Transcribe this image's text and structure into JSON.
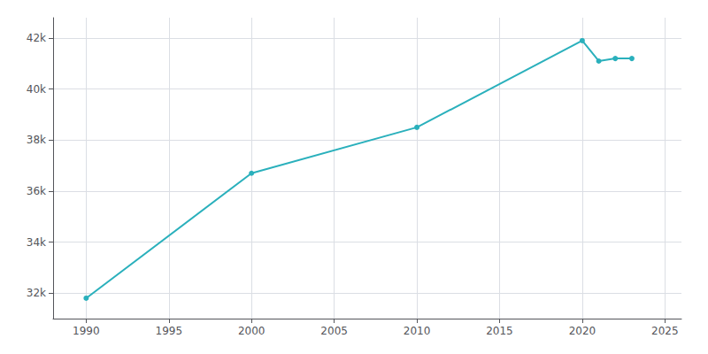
{
  "chart_data": {
    "type": "line",
    "x": [
      1990,
      2000,
      2010,
      2020,
      2021,
      2022,
      2023
    ],
    "values": [
      31800,
      36700,
      38500,
      41900,
      41100,
      41200,
      41200
    ],
    "color": "#2ab0bc",
    "marker": "circle",
    "xlim": [
      1988,
      2026
    ],
    "ylim": [
      31000,
      42800
    ],
    "xticks": [
      1990,
      1995,
      2000,
      2005,
      2010,
      2015,
      2020,
      2025
    ],
    "yticks": [
      {
        "value": 32000,
        "label": "32k"
      },
      {
        "value": 34000,
        "label": "34k"
      },
      {
        "value": 36000,
        "label": "36k"
      },
      {
        "value": 38000,
        "label": "38k"
      },
      {
        "value": 40000,
        "label": "40k"
      },
      {
        "value": 42000,
        "label": "42k"
      }
    ],
    "grid": true
  }
}
